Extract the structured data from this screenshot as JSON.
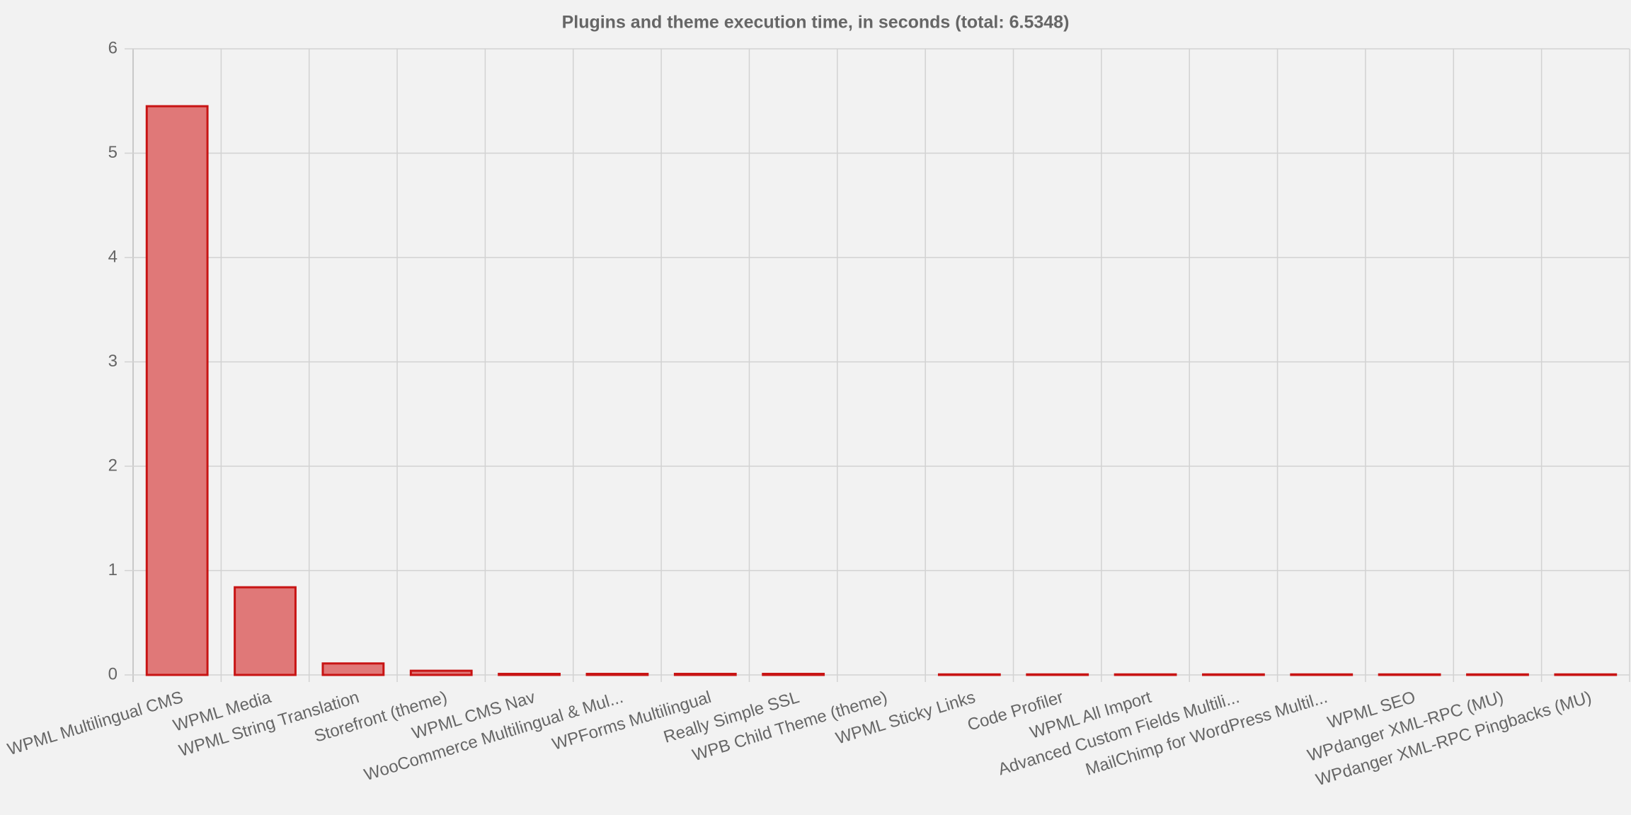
{
  "chart_data": {
    "type": "bar",
    "title": "Plugins and theme execution time, in seconds (total: 6.5348)",
    "categories": [
      "WPML Multilingual CMS",
      "WPML Media",
      "WPML String Translation",
      "Storefront (theme)",
      "WPML CMS Nav",
      "WooCommerce Multilingual & Mul...",
      "WPForms Multilingual",
      "Really Simple SSL",
      "WPB Child Theme (theme)",
      "WPML Sticky Links",
      "Code Profiler",
      "WPML All Import",
      "Advanced Custom Fields Multili...",
      "MailChimp for WordPress Multil...",
      "WPML SEO",
      "WPdanger XML-RPC (MU)",
      "WPdanger XML-RPC Pingbacks (MU)"
    ],
    "values": [
      5.45,
      0.84,
      0.11,
      0.04,
      0.01,
      0.01,
      0.01,
      0.01,
      0,
      0.005,
      0.005,
      0.005,
      0.005,
      0.005,
      0.005,
      0.005,
      0.005
    ],
    "color": "#e07878",
    "border_color": "#c81414",
    "ylim": [
      0,
      6
    ],
    "yticks": [
      0,
      1,
      2,
      3,
      4,
      5,
      6
    ],
    "grid": true
  }
}
